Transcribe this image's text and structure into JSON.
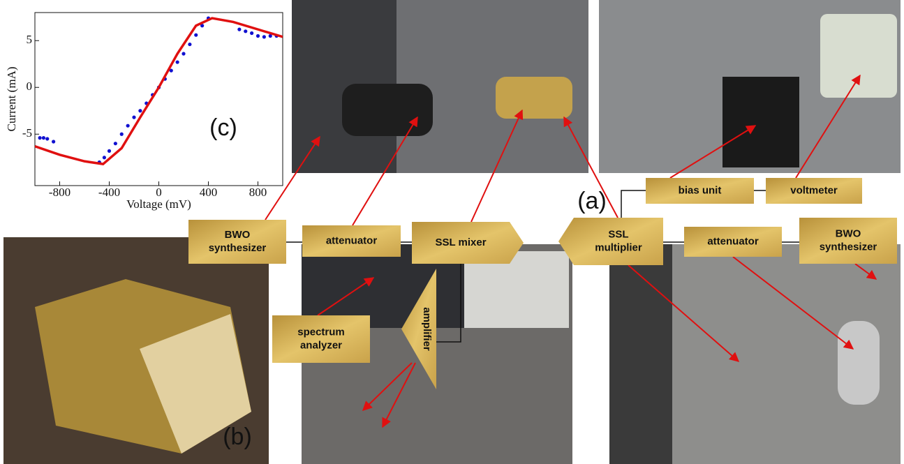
{
  "chart_data": {
    "type": "line",
    "x_label": "Voltage (mV)",
    "y_label": "Current (mA)",
    "xlim": [
      -1000,
      1000
    ],
    "ylim": [
      -10.5,
      8
    ],
    "xticks": [
      -800,
      -400,
      0,
      400,
      800
    ],
    "yticks": [
      -5,
      0,
      5
    ],
    "series": [
      {
        "style": "dots",
        "color": "#1010d0",
        "x": [
          -960,
          -930,
          -900,
          -850,
          -480,
          -440,
          -400,
          -350,
          -300,
          -250,
          -200,
          -150,
          -100,
          -50,
          0,
          50,
          100,
          150,
          200,
          250,
          300,
          350,
          400,
          650,
          700,
          750,
          800,
          850,
          900,
          950
        ],
        "values": [
          -5.4,
          -5.4,
          -5.5,
          -5.8,
          -8.0,
          -7.5,
          -6.8,
          -6.0,
          -5.0,
          -4.1,
          -3.2,
          -2.5,
          -1.7,
          -0.8,
          0,
          0.9,
          1.8,
          2.7,
          3.6,
          4.6,
          5.6,
          6.6,
          7.4,
          6.2,
          6.0,
          5.8,
          5.5,
          5.4,
          5.5,
          5.5
        ]
      },
      {
        "style": "line",
        "color": "#e01010",
        "x": [
          -1000,
          -800,
          -600,
          -450,
          -300,
          -150,
          0,
          150,
          300,
          430,
          600,
          800,
          1000
        ],
        "values": [
          -6.3,
          -7.2,
          -7.9,
          -8.2,
          -6.5,
          -3.2,
          0,
          3.6,
          6.6,
          7.4,
          7.0,
          6.2,
          5.4
        ]
      }
    ]
  },
  "panels": [
    "(a)",
    "(b)",
    "(c)"
  ],
  "labels": [
    {
      "lines": [
        "BWO",
        "synthesizer"
      ]
    },
    {
      "lines": [
        "attenuator"
      ]
    },
    {
      "lines": [
        "SSL mixer"
      ]
    },
    {
      "lines": [
        "SSL",
        "multiplier"
      ]
    },
    {
      "lines": [
        "attenuator"
      ]
    },
    {
      "lines": [
        "BWO",
        "synthesizer"
      ]
    },
    {
      "lines": [
        "bias unit"
      ]
    },
    {
      "lines": [
        "voltmeter"
      ]
    },
    {
      "lines": [
        "spectrum",
        "analyzer"
      ]
    },
    {
      "lines": [
        "amplifier"
      ]
    }
  ]
}
